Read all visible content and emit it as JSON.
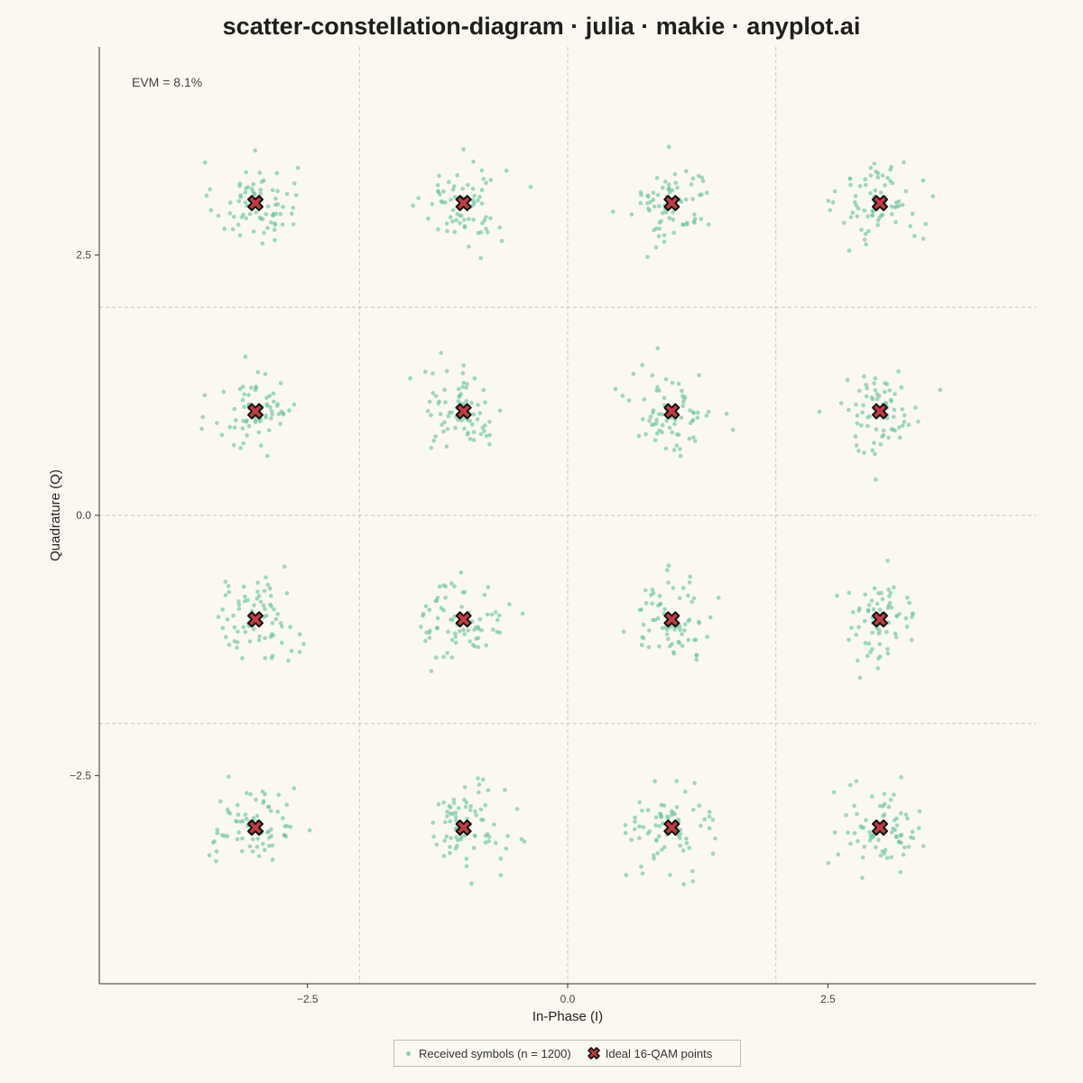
{
  "chart_data": {
    "type": "scatter",
    "title": "scatter-constellation-diagram · julia · makie · anyplot.ai",
    "xlabel": "In-Phase (I)",
    "ylabel": "Quadrature (Q)",
    "xlim": [
      -4.5,
      4.5
    ],
    "ylim": [
      -4.5,
      4.5
    ],
    "x_ticks": [
      -2.5,
      0.0,
      2.5
    ],
    "x_tick_labels": [
      "−2.5",
      "0.0",
      "2.5"
    ],
    "y_ticks": [
      -2.5,
      0.0,
      2.5
    ],
    "y_tick_labels": [
      "−2.5",
      "0.0",
      "2.5"
    ],
    "decision_boundaries": [
      -2,
      0,
      2
    ],
    "annotation": "EVM = 8.1%",
    "legend_position": "bottom-center",
    "colors": {
      "received": "#6cc5a0",
      "ideal_fill": "#c43c40",
      "ideal_edge": "#111111",
      "background": "#FAF8F1",
      "grid": "#c8c8c8"
    },
    "series": [
      {
        "name": "Received symbols (n = 1200)",
        "kind": "scatter",
        "n": 1200,
        "noise_std": 0.2,
        "centers": [
          -3,
          -1,
          1,
          3
        ],
        "marker": "dot"
      },
      {
        "name": "Ideal 16-QAM points",
        "kind": "marker",
        "marker": "x",
        "points": [
          [
            -3,
            3
          ],
          [
            -1,
            3
          ],
          [
            1,
            3
          ],
          [
            3,
            3
          ],
          [
            -3,
            1
          ],
          [
            -1,
            1
          ],
          [
            1,
            1
          ],
          [
            3,
            1
          ],
          [
            -3,
            -1
          ],
          [
            -1,
            -1
          ],
          [
            1,
            -1
          ],
          [
            3,
            -1
          ],
          [
            -3,
            -3
          ],
          [
            -1,
            -3
          ],
          [
            1,
            -3
          ],
          [
            3,
            -3
          ]
        ]
      }
    ]
  }
}
